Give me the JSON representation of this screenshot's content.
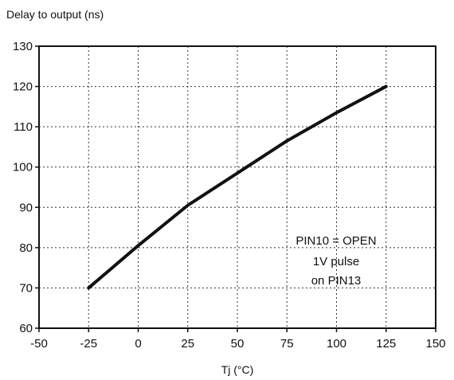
{
  "chart_data": {
    "type": "line",
    "ylabel": "Delay to output (ns)",
    "xlabel": "Tj (°C)",
    "xlim": [
      -50,
      150
    ],
    "ylim": [
      60,
      130
    ],
    "xticks": [
      -50,
      -25,
      0,
      25,
      50,
      75,
      100,
      125,
      150
    ],
    "yticks": [
      60,
      70,
      80,
      90,
      100,
      110,
      120,
      130
    ],
    "grid": true,
    "legend": "none",
    "series": [
      {
        "x": [
          -25,
          0,
          25,
          50,
          75,
          100,
          125
        ],
        "y": [
          70,
          80.5,
          90.5,
          98.5,
          106.5,
          113.5,
          120
        ],
        "color": "#111111"
      }
    ],
    "annotations": [
      "PIN10 = OPEN",
      "1V pulse",
      "on PIN13"
    ]
  }
}
